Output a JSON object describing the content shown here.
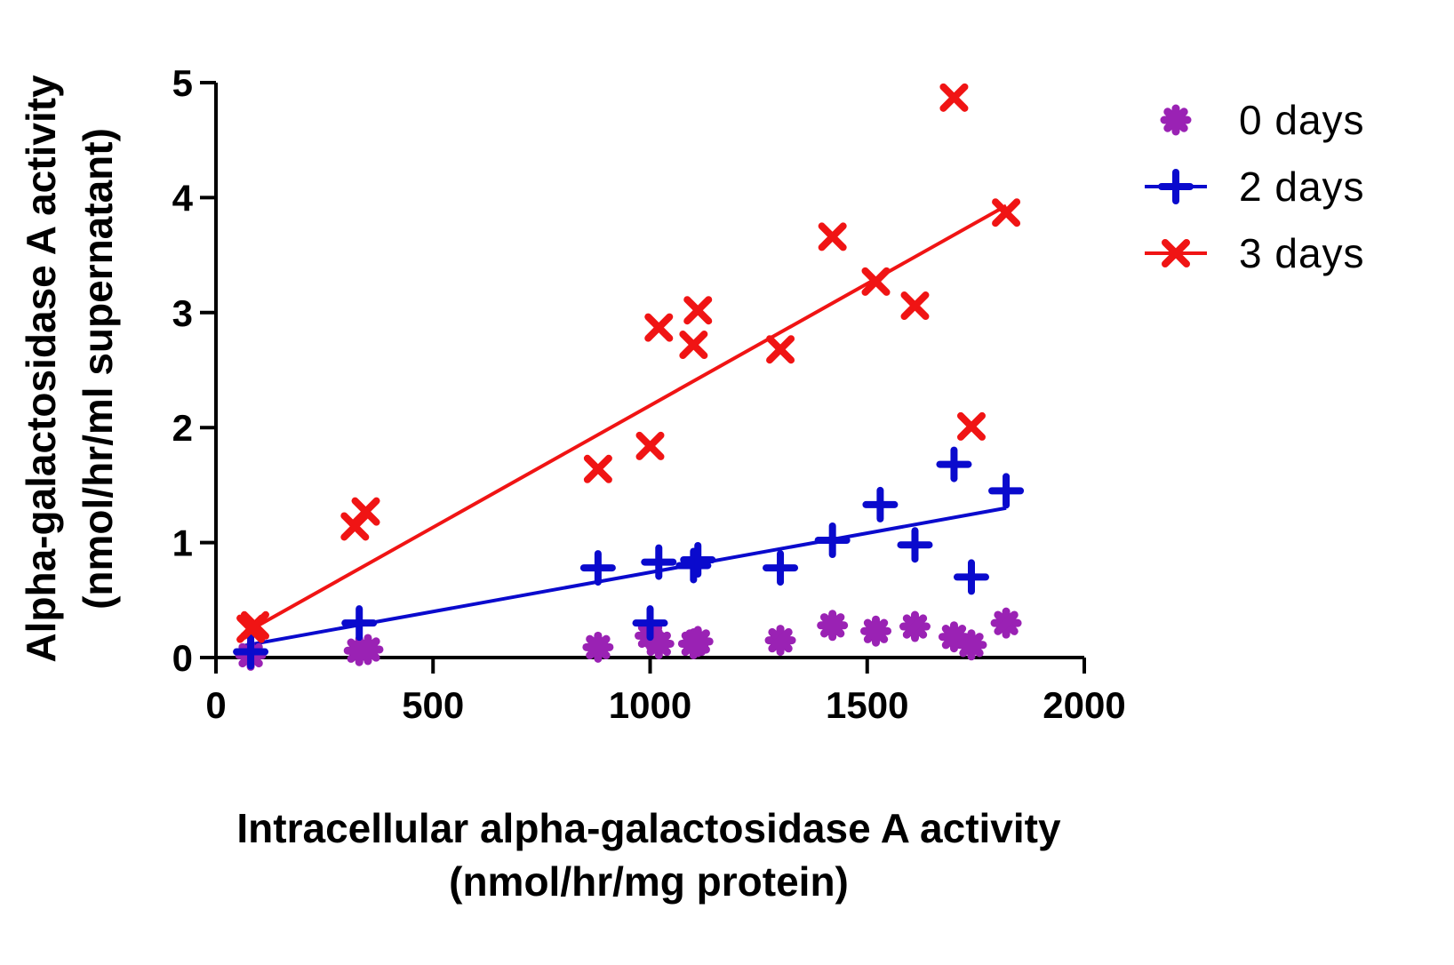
{
  "chart_data": {
    "type": "scatter",
    "title": "",
    "xlabel_lines": [
      "Intracellular alpha-galactosidase A activity",
      "(nmol/hr/mg protein)"
    ],
    "ylabel_lines": [
      "Alpha-galactosidase A activity",
      "(nmol/hr/ml supernatant)"
    ],
    "xlim": [
      0,
      2000
    ],
    "ylim": [
      0,
      5
    ],
    "xticks": [
      0,
      500,
      1000,
      1500,
      2000
    ],
    "yticks": [
      0,
      1,
      2,
      3,
      4,
      5
    ],
    "grid": false,
    "legend_position": "top-right",
    "series": [
      {
        "name": "0 days",
        "color": "#9A22B4",
        "marker": "star-blob",
        "fit_line": false,
        "points": [
          [
            80,
            0.02
          ],
          [
            330,
            0.06
          ],
          [
            350,
            0.07
          ],
          [
            880,
            0.09
          ],
          [
            1000,
            0.19
          ],
          [
            1020,
            0.12
          ],
          [
            1100,
            0.12
          ],
          [
            1110,
            0.14
          ],
          [
            1300,
            0.15
          ],
          [
            1420,
            0.28
          ],
          [
            1520,
            0.23
          ],
          [
            1610,
            0.27
          ],
          [
            1700,
            0.18
          ],
          [
            1740,
            0.11
          ],
          [
            1820,
            0.3
          ]
        ]
      },
      {
        "name": "2 days",
        "color": "#0A0ACD",
        "marker": "plus",
        "fit_line": true,
        "fit": [
          [
            60,
            0.1
          ],
          [
            1820,
            1.3
          ]
        ],
        "points": [
          [
            80,
            0.05
          ],
          [
            330,
            0.3
          ],
          [
            880,
            0.78
          ],
          [
            1000,
            0.3
          ],
          [
            1020,
            0.83
          ],
          [
            1100,
            0.8
          ],
          [
            1110,
            0.85
          ],
          [
            1300,
            0.78
          ],
          [
            1420,
            1.02
          ],
          [
            1530,
            1.33
          ],
          [
            1610,
            0.98
          ],
          [
            1700,
            1.68
          ],
          [
            1740,
            0.7
          ],
          [
            1820,
            1.45
          ]
        ]
      },
      {
        "name": "3 days",
        "color": "#F01414",
        "marker": "x",
        "fit_line": true,
        "fit": [
          [
            60,
            0.2
          ],
          [
            1820,
            3.93
          ]
        ],
        "points": [
          [
            80,
            0.25
          ],
          [
            90,
            0.28
          ],
          [
            320,
            1.14
          ],
          [
            345,
            1.27
          ],
          [
            880,
            1.64
          ],
          [
            1000,
            1.84
          ],
          [
            1020,
            2.87
          ],
          [
            1100,
            2.72
          ],
          [
            1110,
            3.02
          ],
          [
            1300,
            2.68
          ],
          [
            1420,
            3.66
          ],
          [
            1520,
            3.27
          ],
          [
            1610,
            3.06
          ],
          [
            1700,
            4.87
          ],
          [
            1740,
            2.01
          ],
          [
            1820,
            3.87
          ]
        ]
      }
    ]
  }
}
